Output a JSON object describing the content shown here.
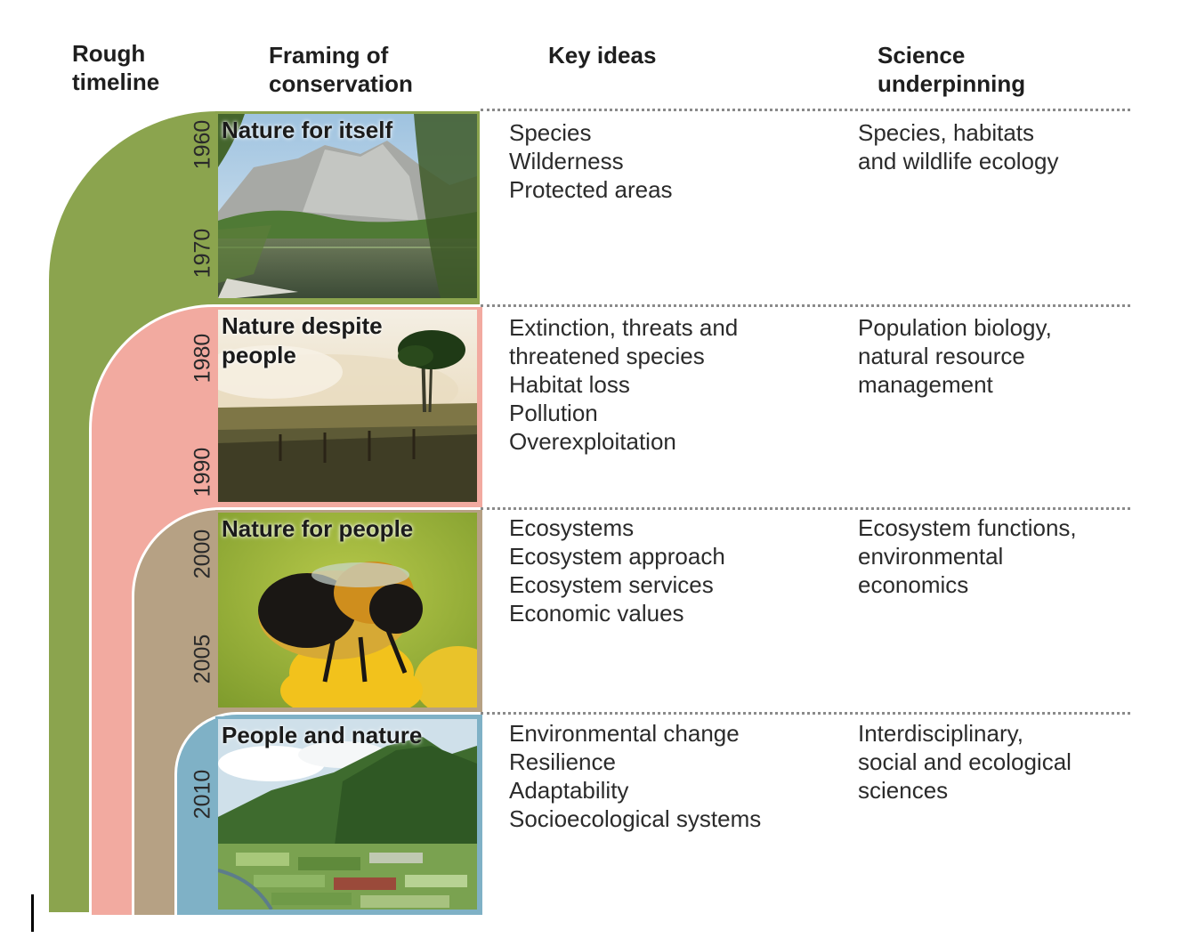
{
  "headers": {
    "timeline": "Rough\ntimeline",
    "framing": "Framing of\nconservation",
    "key_ideas": "Key ideas",
    "science": "Science\nunderpinning"
  },
  "colors": {
    "green": "#8ba44e",
    "pink": "#f2aaa0",
    "tan": "#b6a184",
    "blue": "#7fb1c6"
  },
  "rows": [
    {
      "title": "Nature for itself",
      "years": [
        "1960",
        "1970"
      ],
      "key_ideas": [
        "Species",
        "Wilderness",
        "Protected areas"
      ],
      "science": [
        "Species, habitats",
        "and wildlife ecology"
      ]
    },
    {
      "title": "Nature despite people",
      "years": [
        "1980",
        "1990"
      ],
      "key_ideas": [
        "Extinction, threats and",
        "threatened species",
        "Habitat loss",
        "Pollution",
        "Overexploitation"
      ],
      "science": [
        "Population biology,",
        "natural resource",
        "management"
      ]
    },
    {
      "title": "Nature for people",
      "years": [
        "2000",
        "2005"
      ],
      "key_ideas": [
        "Ecosystems",
        "Ecosystem approach",
        "Ecosystem services",
        "Economic values"
      ],
      "science": [
        "Ecosystem functions,",
        "environmental",
        "economics"
      ]
    },
    {
      "title": "People and nature",
      "years": [
        "2010"
      ],
      "key_ideas": [
        "Environmental change",
        "Resilience",
        "Adaptability",
        "Socioecological systems"
      ],
      "science": [
        "Interdisciplinary,",
        "social and ecological",
        "sciences"
      ]
    }
  ]
}
